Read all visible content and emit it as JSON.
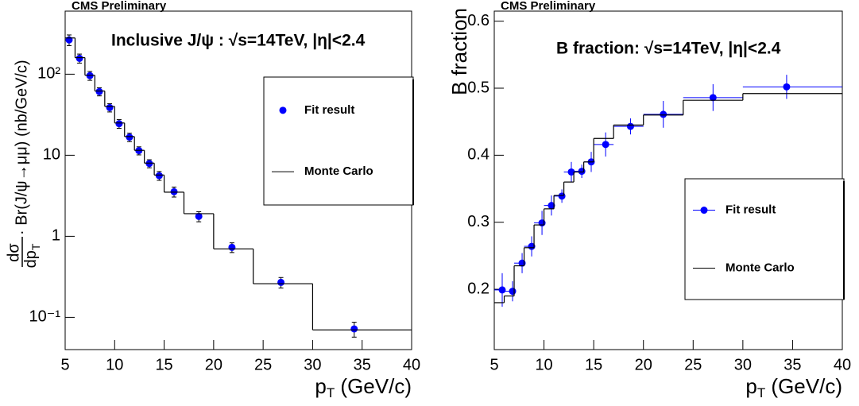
{
  "chart_data": [
    {
      "type": "scatter",
      "header": "CMS Preliminary",
      "title": "Inclusive J/ψ : √s=14TeV, |η|<2.4",
      "xlabel": [
        "p",
        "T",
        " (GeV/c)"
      ],
      "ylabel": [
        "dσ",
        "dp",
        "T",
        " · Br(J/ψ→μμ) (nb/GeV/c)"
      ],
      "log_y": true,
      "xlim": [
        5,
        40
      ],
      "ylim": [
        0.04,
        600
      ],
      "xticks": [
        5,
        10,
        15,
        20,
        25,
        30,
        35,
        40
      ],
      "yticks": [
        {
          "value": 0.1,
          "label": "10⁻¹"
        },
        1,
        10,
        {
          "value": 100,
          "label": "10²"
        }
      ],
      "legend": "upper right",
      "series": [
        {
          "name": "Fit result",
          "color": "#0000ff",
          "x": [
            5.4,
            6.45,
            7.5,
            8.45,
            9.5,
            10.45,
            11.5,
            12.45,
            13.5,
            14.5,
            16,
            18.5,
            21.85,
            26.8,
            34.2
          ],
          "values": [
            265,
            157,
            96,
            61,
            38.7,
            24.5,
            16.7,
            11.4,
            7.9,
            5.6,
            3.55,
            1.76,
            0.73,
            0.27,
            0.072
          ],
          "errors": [
            40,
            20,
            12,
            7,
            4.5,
            3,
            2,
            1.3,
            0.9,
            0.7,
            0.5,
            0.25,
            0.1,
            0.04,
            0.015
          ]
        },
        {
          "name": "Monte Carlo",
          "color": "#000000",
          "type": "step",
          "bins": [
            5,
            6,
            7,
            8,
            9,
            10,
            11,
            12,
            13,
            14,
            15,
            17,
            20,
            24,
            30,
            40
          ],
          "values": [
            280,
            160,
            97,
            62,
            40,
            25,
            17,
            11.5,
            8,
            5.7,
            3.5,
            1.9,
            0.7,
            0.26,
            0.07
          ]
        }
      ]
    },
    {
      "type": "scatter",
      "header": "CMS Preliminary",
      "title": "B fraction: √s=14TeV, |η|<2.4",
      "xlabel": [
        "p",
        "T",
        " (GeV/c)"
      ],
      "ylabel": "B fraction",
      "log_y": false,
      "xlim": [
        5,
        40
      ],
      "ylim": [
        0.11,
        0.615
      ],
      "xticks": [
        5,
        10,
        15,
        20,
        25,
        30,
        35,
        40
      ],
      "yticks": [
        0.2,
        0.3,
        0.4,
        0.5,
        0.6
      ],
      "legend": "center right",
      "series": [
        {
          "name": "Fit result",
          "color": "#0000ff",
          "x": [
            5.8,
            6.84,
            7.8,
            8.76,
            9.8,
            10.75,
            11.8,
            12.75,
            13.8,
            14.75,
            16.2,
            18.7,
            22,
            27,
            34.4
          ],
          "values": [
            0.199,
            0.197,
            0.239,
            0.264,
            0.299,
            0.325,
            0.339,
            0.375,
            0.376,
            0.39,
            0.416,
            0.443,
            0.461,
            0.486,
            0.502
          ],
          "errors": [
            0.025,
            0.015,
            0.015,
            0.015,
            0.018,
            0.015,
            0.01,
            0.015,
            0.01,
            0.015,
            0.018,
            0.012,
            0.02,
            0.02,
            0.018
          ],
          "bins": [
            5,
            6,
            7,
            8,
            9,
            10,
            11,
            12,
            13,
            14,
            15,
            17,
            20,
            24,
            30,
            40
          ]
        },
        {
          "name": "Monte Carlo",
          "color": "#000000",
          "type": "step",
          "bins": [
            5,
            6,
            7,
            8,
            9,
            10,
            11,
            12,
            13,
            14,
            15,
            17,
            20,
            24,
            30,
            40
          ],
          "values": [
            0.18,
            0.19,
            0.235,
            0.262,
            0.296,
            0.32,
            0.34,
            0.36,
            0.375,
            0.39,
            0.425,
            0.445,
            0.46,
            0.482,
            0.492
          ]
        }
      ]
    }
  ]
}
